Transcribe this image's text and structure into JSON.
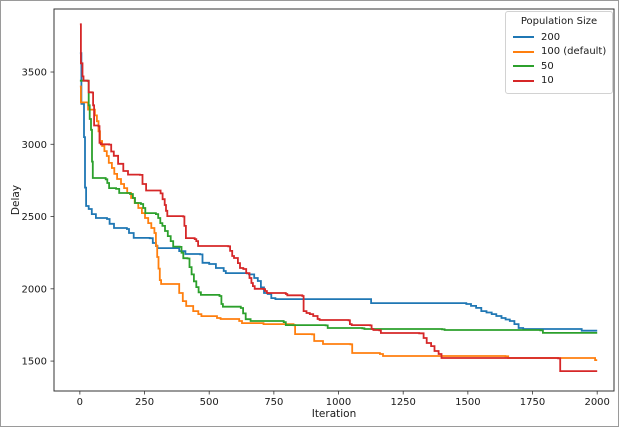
{
  "chart_data": {
    "type": "line",
    "style": "step-post",
    "title": "",
    "xlabel": "Iteration",
    "ylabel": "Delay",
    "xlim": [
      -100,
      2065
    ],
    "ylim": [
      1293,
      3936
    ],
    "xticks": [
      0,
      250,
      500,
      750,
      1000,
      1250,
      1500,
      1750,
      2000
    ],
    "yticks": [
      1500,
      2000,
      2500,
      3000,
      3500
    ],
    "grid": false,
    "legend": {
      "title": "Population Size",
      "position": "upper right"
    },
    "series": [
      {
        "name": "200",
        "color": "#1f77b4",
        "points": [
          [
            0,
            3630
          ],
          [
            6,
            3280
          ],
          [
            13,
            3280
          ],
          [
            16,
            3050
          ],
          [
            20,
            2700
          ],
          [
            24,
            2573
          ],
          [
            34,
            2552
          ],
          [
            46,
            2517
          ],
          [
            62,
            2490
          ],
          [
            105,
            2483
          ],
          [
            115,
            2450
          ],
          [
            132,
            2421
          ],
          [
            182,
            2414
          ],
          [
            190,
            2386
          ],
          [
            208,
            2352
          ],
          [
            270,
            2350
          ],
          [
            282,
            2317
          ],
          [
            294,
            2296
          ],
          [
            300,
            2282
          ],
          [
            368,
            2282
          ],
          [
            384,
            2261
          ],
          [
            408,
            2241
          ],
          [
            465,
            2238
          ],
          [
            474,
            2180
          ],
          [
            500,
            2172
          ],
          [
            526,
            2144
          ],
          [
            556,
            2123
          ],
          [
            564,
            2109
          ],
          [
            646,
            2107
          ],
          [
            654,
            2100
          ],
          [
            674,
            2075
          ],
          [
            688,
            2054
          ],
          [
            700,
            2010
          ],
          [
            712,
            1971
          ],
          [
            726,
            1964
          ],
          [
            740,
            1936
          ],
          [
            756,
            1929
          ],
          [
            1118,
            1929
          ],
          [
            1126,
            1901
          ],
          [
            1494,
            1895
          ],
          [
            1512,
            1882
          ],
          [
            1532,
            1868
          ],
          [
            1552,
            1846
          ],
          [
            1572,
            1836
          ],
          [
            1592,
            1825
          ],
          [
            1610,
            1812
          ],
          [
            1630,
            1798
          ],
          [
            1646,
            1788
          ],
          [
            1662,
            1777
          ],
          [
            1680,
            1756
          ],
          [
            1696,
            1729
          ],
          [
            1714,
            1722
          ],
          [
            1930,
            1722
          ],
          [
            1940,
            1710
          ],
          [
            2000,
            1710
          ]
        ]
      },
      {
        "name": "100 (default)",
        "color": "#ff7f0e",
        "points": [
          [
            0,
            3400
          ],
          [
            4,
            3290
          ],
          [
            26,
            3290
          ],
          [
            32,
            3240
          ],
          [
            58,
            3200
          ],
          [
            66,
            3160
          ],
          [
            72,
            3090
          ],
          [
            78,
            3023
          ],
          [
            86,
            2988
          ],
          [
            95,
            2953
          ],
          [
            104,
            2919
          ],
          [
            112,
            2871
          ],
          [
            124,
            2836
          ],
          [
            133,
            2795
          ],
          [
            144,
            2760
          ],
          [
            159,
            2725
          ],
          [
            171,
            2697
          ],
          [
            183,
            2663
          ],
          [
            198,
            2628
          ],
          [
            212,
            2594
          ],
          [
            226,
            2559
          ],
          [
            240,
            2524
          ],
          [
            252,
            2490
          ],
          [
            264,
            2455
          ],
          [
            276,
            2421
          ],
          [
            288,
            2386
          ],
          [
            294,
            2300
          ],
          [
            299,
            2220
          ],
          [
            304,
            2140
          ],
          [
            309,
            2060
          ],
          [
            314,
            2033
          ],
          [
            372,
            2033
          ],
          [
            384,
            1971
          ],
          [
            398,
            1915
          ],
          [
            411,
            1881
          ],
          [
            438,
            1846
          ],
          [
            458,
            1825
          ],
          [
            470,
            1811
          ],
          [
            530,
            1798
          ],
          [
            544,
            1791
          ],
          [
            616,
            1777
          ],
          [
            627,
            1763
          ],
          [
            710,
            1756
          ],
          [
            826,
            1748
          ],
          [
            832,
            1687
          ],
          [
            898,
            1685
          ],
          [
            906,
            1639
          ],
          [
            940,
            1618
          ],
          [
            1046,
            1616
          ],
          [
            1053,
            1556
          ],
          [
            1160,
            1549
          ],
          [
            1172,
            1535
          ],
          [
            1645,
            1533
          ],
          [
            1656,
            1521
          ],
          [
            1986,
            1521
          ],
          [
            1992,
            1507
          ],
          [
            2000,
            1507
          ]
        ]
      },
      {
        "name": "50",
        "color": "#2ca02c",
        "points": [
          [
            0,
            3440
          ],
          [
            30,
            3440
          ],
          [
            34,
            3270
          ],
          [
            38,
            3175
          ],
          [
            43,
            3100
          ],
          [
            47,
            2880
          ],
          [
            50,
            2767
          ],
          [
            100,
            2758
          ],
          [
            106,
            2732
          ],
          [
            113,
            2697
          ],
          [
            140,
            2691
          ],
          [
            152,
            2663
          ],
          [
            194,
            2656
          ],
          [
            205,
            2628
          ],
          [
            213,
            2594
          ],
          [
            236,
            2587
          ],
          [
            245,
            2559
          ],
          [
            253,
            2524
          ],
          [
            294,
            2517
          ],
          [
            303,
            2490
          ],
          [
            311,
            2455
          ],
          [
            319,
            2435
          ],
          [
            329,
            2400
          ],
          [
            340,
            2365
          ],
          [
            351,
            2330
          ],
          [
            361,
            2292
          ],
          [
            386,
            2290
          ],
          [
            393,
            2250
          ],
          [
            400,
            2212
          ],
          [
            416,
            2210
          ],
          [
            424,
            2150
          ],
          [
            432,
            2100
          ],
          [
            441,
            2052
          ],
          [
            450,
            2012
          ],
          [
            459,
            1976
          ],
          [
            468,
            1958
          ],
          [
            540,
            1950
          ],
          [
            547,
            1895
          ],
          [
            553,
            1876
          ],
          [
            622,
            1867
          ],
          [
            631,
            1830
          ],
          [
            641,
            1790
          ],
          [
            660,
            1777
          ],
          [
            788,
            1770
          ],
          [
            796,
            1749
          ],
          [
            950,
            1747
          ],
          [
            958,
            1729
          ],
          [
            1092,
            1727
          ],
          [
            1100,
            1722
          ],
          [
            1400,
            1720
          ],
          [
            1410,
            1715
          ],
          [
            1780,
            1713
          ],
          [
            1790,
            1695
          ],
          [
            2000,
            1695
          ]
        ]
      },
      {
        "name": "10",
        "color": "#d62728",
        "points": [
          [
            0,
            3830
          ],
          [
            4,
            3560
          ],
          [
            10,
            3470
          ],
          [
            14,
            3440
          ],
          [
            30,
            3438
          ],
          [
            34,
            3360
          ],
          [
            47,
            3358
          ],
          [
            51,
            3270
          ],
          [
            55,
            3130
          ],
          [
            72,
            3125
          ],
          [
            76,
            3010
          ],
          [
            81,
            3000
          ],
          [
            113,
            2998
          ],
          [
            121,
            2950
          ],
          [
            131,
            2920
          ],
          [
            148,
            2865
          ],
          [
            168,
            2815
          ],
          [
            186,
            2790
          ],
          [
            232,
            2788
          ],
          [
            242,
            2725
          ],
          [
            256,
            2680
          ],
          [
            312,
            2660
          ],
          [
            320,
            2620
          ],
          [
            328,
            2580
          ],
          [
            333,
            2540
          ],
          [
            338,
            2503
          ],
          [
            399,
            2500
          ],
          [
            404,
            2435
          ],
          [
            410,
            2351
          ],
          [
            444,
            2344
          ],
          [
            450,
            2330
          ],
          [
            457,
            2296
          ],
          [
            574,
            2294
          ],
          [
            581,
            2262
          ],
          [
            589,
            2227
          ],
          [
            596,
            2213
          ],
          [
            611,
            2178
          ],
          [
            619,
            2144
          ],
          [
            632,
            2137
          ],
          [
            643,
            2109
          ],
          [
            656,
            2075
          ],
          [
            663,
            2040
          ],
          [
            669,
            2019
          ],
          [
            676,
            2000
          ],
          [
            710,
            1998
          ],
          [
            716,
            1985
          ],
          [
            723,
            1971
          ],
          [
            796,
            1964
          ],
          [
            802,
            1955
          ],
          [
            860,
            1950
          ],
          [
            865,
            1846
          ],
          [
            876,
            1833
          ],
          [
            889,
            1825
          ],
          [
            902,
            1812
          ],
          [
            919,
            1791
          ],
          [
            927,
            1784
          ],
          [
            1039,
            1782
          ],
          [
            1044,
            1756
          ],
          [
            1051,
            1749
          ],
          [
            1122,
            1747
          ],
          [
            1128,
            1722
          ],
          [
            1135,
            1715
          ],
          [
            1158,
            1713
          ],
          [
            1164,
            1694
          ],
          [
            1312,
            1692
          ],
          [
            1329,
            1660
          ],
          [
            1341,
            1625
          ],
          [
            1358,
            1604
          ],
          [
            1371,
            1570
          ],
          [
            1387,
            1549
          ],
          [
            1398,
            1521
          ],
          [
            1849,
            1519
          ],
          [
            1857,
            1431
          ],
          [
            2000,
            1431
          ]
        ]
      }
    ]
  }
}
